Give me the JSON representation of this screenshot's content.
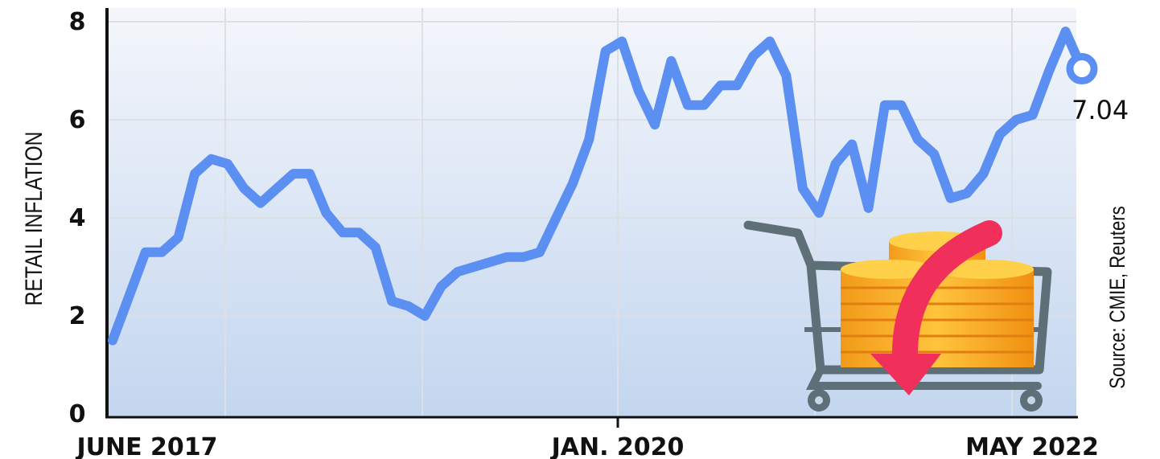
{
  "chart_data": {
    "type": "line",
    "ylabel": "RETAIL INFLATION",
    "ylim": [
      0,
      8
    ],
    "y_ticks": [
      "0",
      "2",
      "4",
      "6",
      "8"
    ],
    "x_ticks": [
      "JUNE 2017",
      "JAN. 2020",
      "MAY 2022"
    ],
    "grid": true,
    "source": "Source: CMIE, Reuters",
    "last_value_label": "7.04",
    "colors": {
      "line": "#5b8ff2",
      "fill_top": "#f2f5fb",
      "fill_bottom": "#c4d7f0",
      "grid": "#dcdfe4"
    },
    "series": [
      {
        "values": [
          1.5,
          2.4,
          3.3,
          3.3,
          3.6,
          4.9,
          5.2,
          5.1,
          4.6,
          4.3,
          4.6,
          4.9,
          4.9,
          4.1,
          3.7,
          3.7,
          3.4,
          2.3,
          2.2,
          2.0,
          2.6,
          2.9,
          3.0,
          3.1,
          3.2,
          3.2,
          3.3,
          4.0,
          4.7,
          5.6,
          7.4,
          7.6,
          6.6,
          5.9,
          7.2,
          6.3,
          6.3,
          6.7,
          6.7,
          7.3,
          7.6,
          6.9,
          4.6,
          4.1,
          5.1,
          5.5,
          4.2,
          6.3,
          6.3,
          5.6,
          5.3,
          4.4,
          4.5,
          4.9,
          5.7,
          6.0,
          6.1,
          7.0,
          7.8,
          7.04
        ]
      }
    ]
  },
  "icons": [
    "shopping-cart-icon",
    "coin-stack-icon",
    "down-arrow-icon"
  ]
}
